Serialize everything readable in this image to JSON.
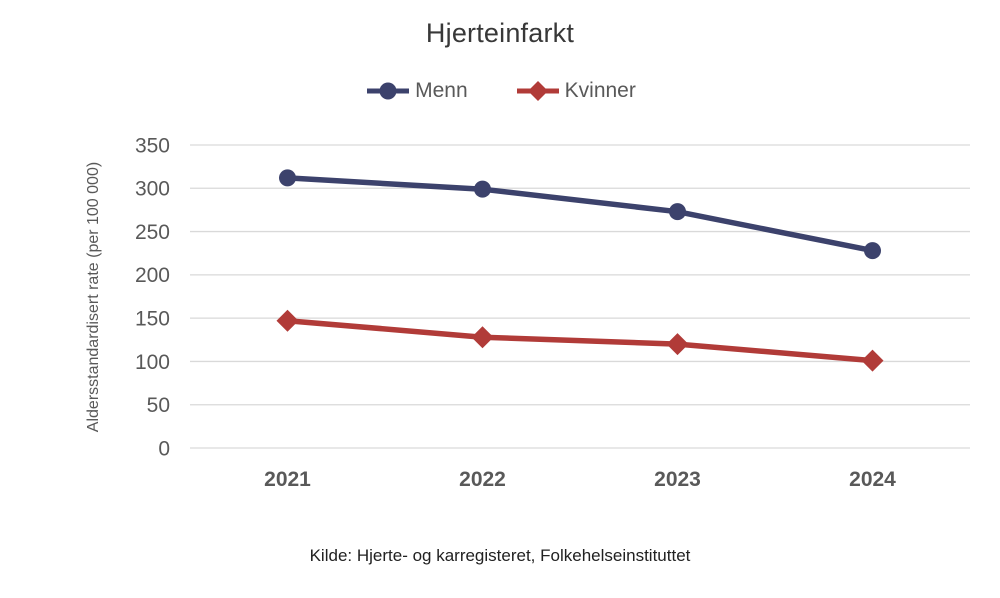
{
  "title": "Hjerteinfarkt",
  "footer": "Kilde: Hjerte- og karregisteret, Folkehelseinstituttet",
  "chart_data": {
    "type": "line",
    "title": "Hjerteinfarkt",
    "categories": [
      "2021",
      "2022",
      "2023",
      "2024"
    ],
    "series": [
      {
        "name": "Menn",
        "marker": "circle",
        "color": "#3C426C",
        "values": [
          312,
          299,
          273,
          228
        ]
      },
      {
        "name": "Kvinner",
        "marker": "diamond",
        "color": "#B13B38",
        "values": [
          147,
          128,
          120,
          101
        ]
      }
    ],
    "xlabel": "",
    "ylabel": "Aldersstandardisert rate (per 100 000)",
    "yticks": [
      0,
      50,
      100,
      150,
      200,
      250,
      300,
      350
    ],
    "ylim": [
      0,
      350
    ],
    "grid": true,
    "legend_position": "top",
    "colors": {
      "gridline": "#D9D9D9",
      "axis_text": "#595959",
      "title_text": "#383838",
      "source_text": "#212121"
    }
  }
}
